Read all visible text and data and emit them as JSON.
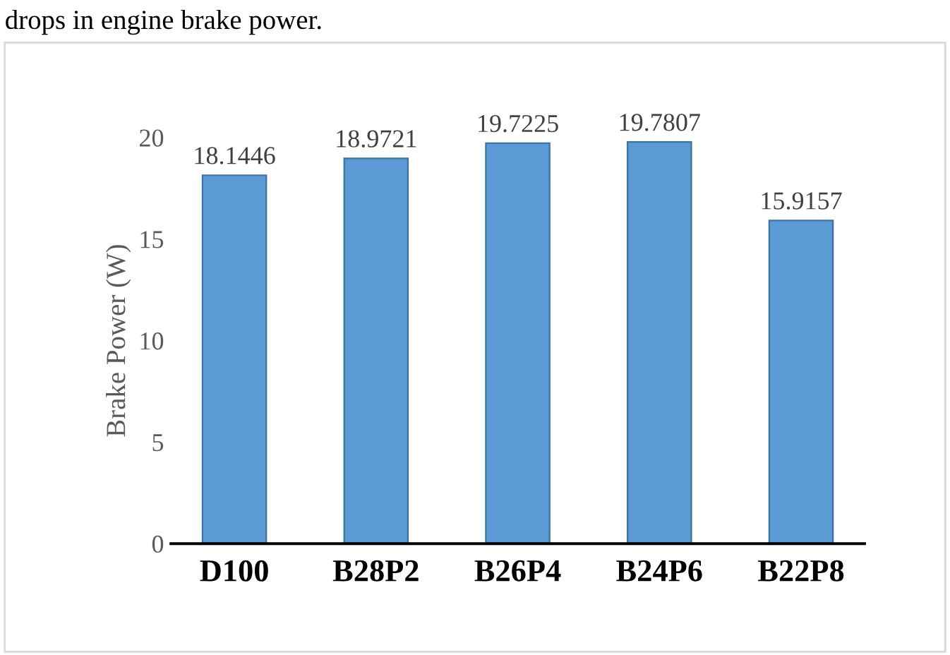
{
  "chart_data": {
    "type": "bar",
    "ylabel": "Brake Power (W)",
    "categories": [
      "D100",
      "B28P2",
      "B26P4",
      "B24P6",
      "B22P8"
    ],
    "values": [
      18.1446,
      18.9721,
      19.7225,
      19.7807,
      15.9157
    ],
    "color": "#5b9bd5",
    "data_labels": true,
    "ylim": [
      0,
      20
    ],
    "yticks": [
      0,
      5,
      10,
      15,
      20
    ],
    "grid": false,
    "legend": false,
    "annotations": [
      "drops in engine brake power."
    ]
  }
}
